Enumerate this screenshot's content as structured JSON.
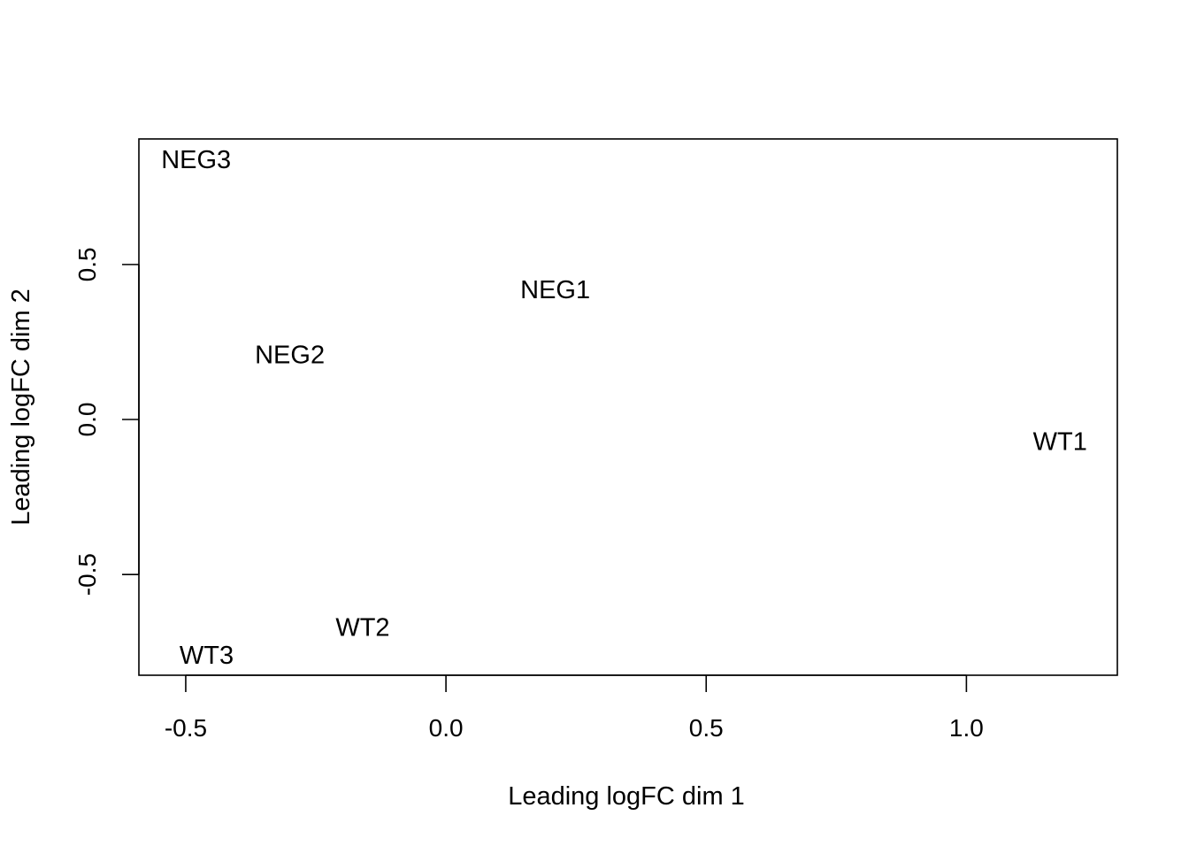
{
  "chart_data": {
    "type": "scatter",
    "title": "",
    "xlabel": "Leading logFC dim 1",
    "ylabel": "Leading logFC dim 2",
    "xlim": [
      -0.59,
      1.29
    ],
    "ylim": [
      -0.825,
      0.905
    ],
    "xticks": [
      -0.5,
      0.0,
      0.5,
      1.0
    ],
    "xtick_labels": [
      "-0.5",
      "0.0",
      "0.5",
      "1.0"
    ],
    "yticks": [
      -0.5,
      0.0,
      0.5
    ],
    "ytick_labels": [
      "-0.5",
      "0.0",
      "0.5"
    ],
    "grid": false,
    "marker": "text-label",
    "color": "#000000",
    "points": [
      {
        "label": "NEG1",
        "x": 0.21,
        "y": 0.42
      },
      {
        "label": "NEG2",
        "x": -0.3,
        "y": 0.21
      },
      {
        "label": "NEG3",
        "x": -0.48,
        "y": 0.84
      },
      {
        "label": "WT1",
        "x": 1.18,
        "y": -0.07
      },
      {
        "label": "WT2",
        "x": -0.16,
        "y": -0.67
      },
      {
        "label": "WT3",
        "x": -0.46,
        "y": -0.76
      }
    ]
  }
}
